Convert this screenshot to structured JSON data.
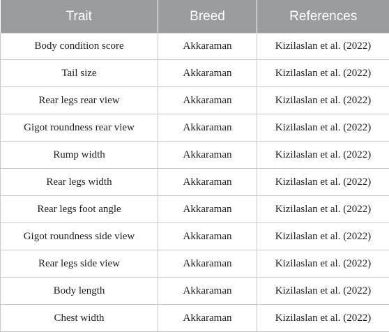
{
  "table": {
    "headers": [
      "Trait",
      "Breed",
      "References"
    ],
    "rows": [
      [
        "Body condition score",
        "Akkaraman",
        "Kizilaslan et al. (2022)"
      ],
      [
        "Tail size",
        "Akkaraman",
        "Kizilaslan et al. (2022)"
      ],
      [
        "Rear legs rear view",
        "Akkaraman",
        "Kizilaslan et al. (2022)"
      ],
      [
        "Gigot roundness rear view",
        "Akkaraman",
        "Kizilaslan et al. (2022)"
      ],
      [
        "Rump width",
        "Akkaraman",
        "Kizilaslan et al. (2022)"
      ],
      [
        "Rear legs width",
        "Akkaraman",
        "Kizilaslan et al. (2022)"
      ],
      [
        "Rear legs foot angle",
        "Akkaraman",
        "Kizilaslan et al. (2022)"
      ],
      [
        "Gigot roundness side view",
        "Akkaraman",
        "Kizilaslan et al. (2022)"
      ],
      [
        "Rear legs side view",
        "Akkaraman",
        "Kizilaslan et al. (2022)"
      ],
      [
        "Body length",
        "Akkaraman",
        "Kizilaslan et al. (2022)"
      ],
      [
        "Chest width",
        "Akkaraman",
        "Kizilaslan et al. (2022)"
      ]
    ]
  },
  "colors": {
    "header_background": "#9b9c9d",
    "header_text": "#ffffff",
    "grid_line": "#c9c9c9"
  }
}
